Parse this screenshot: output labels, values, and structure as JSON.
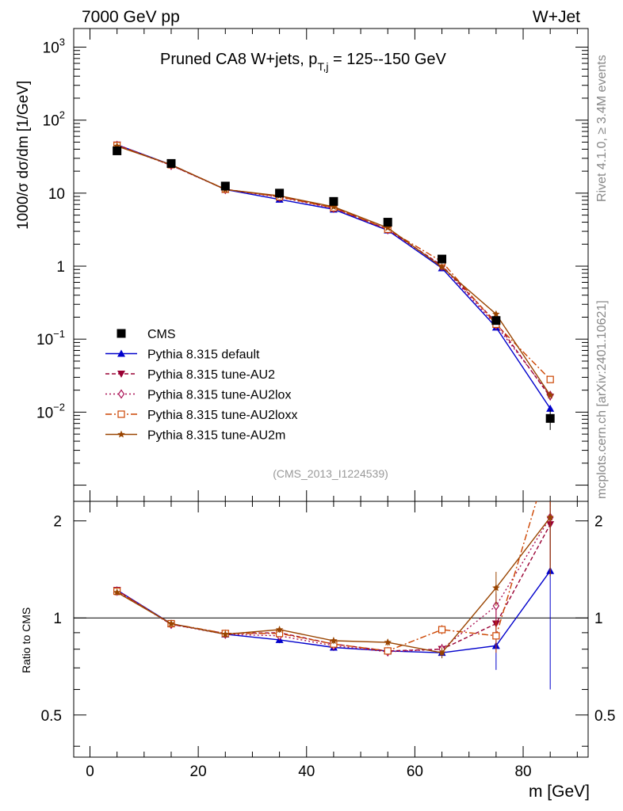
{
  "header": {
    "left": "7000 GeV pp",
    "right": "W+Jet",
    "title_main": "Pruned CA8 W+jets, p",
    "title_sub": "T,j",
    "title_tail": " = 125--150 GeV",
    "watermark": "(CMS_2013_I1224539)",
    "side_top": "Rivet 4.1.0, ≥ 3.4M events",
    "side_bottom": "mcplots.cern.ch [arXiv:2401.10621]"
  },
  "chart_data": {
    "type": "line",
    "title": "Pruned CA8 W+jets, p_T,j = 125--150 GeV",
    "xlabel": "m [GeV]",
    "ylabel": "1000/σ  dσ/dm [1/GeV]",
    "ratio_ylabel": "Ratio to CMS",
    "xlim": [
      -3,
      92
    ],
    "ylim": [
      0.0006,
      1800
    ],
    "yscale": "log",
    "ratio_ylim": [
      0.37,
      2.3
    ],
    "ratio_yscale": "log",
    "x_ticks": [
      0,
      20,
      40,
      60,
      80
    ],
    "x_tick_labels": [
      "0",
      "20",
      "40",
      "60",
      "80"
    ],
    "y_tick_labels": [
      {
        "base": "10",
        "exp": "3",
        "value": 1000
      },
      {
        "base": "10",
        "exp": "2",
        "value": 100
      },
      {
        "base": "10",
        "exp": "",
        "value": 10
      },
      {
        "base": "1",
        "exp": "",
        "value": 1
      },
      {
        "base": "10",
        "exp": "−1",
        "value": 0.1
      },
      {
        "base": "10",
        "exp": "−2",
        "value": 0.01
      }
    ],
    "ratio_tick_labels": [
      {
        "label": "0.5",
        "value": 0.5
      },
      {
        "label": "1",
        "value": 1
      },
      {
        "label": "2",
        "value": 2
      }
    ],
    "x": [
      5,
      15,
      25,
      35,
      45,
      55,
      65,
      75,
      85
    ],
    "data": {
      "name": "CMS",
      "values": [
        38,
        25.5,
        12.5,
        10,
        7.7,
        4.0,
        1.25,
        0.18,
        0.0082
      ],
      "errors": [
        1.5,
        1.0,
        0.5,
        0.4,
        0.4,
        0.2,
        0.08,
        0.02,
        0.0025
      ]
    },
    "series": [
      {
        "name": "Pythia 8.315 default",
        "color": "#0000cc",
        "dash": "",
        "marker": "triangle-up",
        "values": [
          46,
          24.5,
          11.2,
          8.2,
          6.0,
          3.1,
          0.94,
          0.145,
          0.0112
        ],
        "ratio": [
          1.22,
          0.96,
          0.89,
          0.855,
          0.81,
          0.79,
          0.78,
          0.82,
          1.4
        ],
        "ratio_err": [
          0.02,
          0.02,
          0.02,
          0.02,
          0.02,
          0.02,
          0.03,
          0.13,
          0.8
        ]
      },
      {
        "name": "Pythia 8.315 tune-AU2",
        "color": "#990033",
        "dash": "5,3",
        "marker": "triangle-down",
        "values": [
          46,
          24,
          11.3,
          9.0,
          6.3,
          3.2,
          1.02,
          0.17,
          0.0162
        ],
        "ratio": [
          1.22,
          0.955,
          0.895,
          0.9,
          0.83,
          0.79,
          0.8,
          0.96,
          1.95
        ],
        "ratio_err": [
          0.02,
          0.02,
          0.02,
          0.02,
          0.02,
          0.02,
          0.03,
          0.1,
          0.6
        ]
      },
      {
        "name": "Pythia 8.315 tune-AU2lox",
        "color": "#aa1155",
        "dash": "2,3",
        "marker": "diamond",
        "values": [
          45,
          24,
          11.2,
          8.8,
          6.2,
          3.15,
          1.0,
          0.155,
          0.017
        ],
        "ratio": [
          1.21,
          0.955,
          0.89,
          0.88,
          0.82,
          0.785,
          0.8,
          1.09,
          2.05
        ],
        "ratio_err": [
          0.02,
          0.02,
          0.02,
          0.02,
          0.02,
          0.02,
          0.03,
          0.1,
          0.6
        ]
      },
      {
        "name": "Pythia 8.315 tune-AU2loxx",
        "color": "#cc4400",
        "dash": "8,3,2,3",
        "marker": "square-open",
        "values": [
          45,
          24.5,
          11.3,
          8.9,
          6.3,
          3.2,
          1.15,
          0.16,
          0.028
        ],
        "ratio": [
          1.21,
          0.96,
          0.895,
          0.895,
          0.83,
          0.79,
          0.92,
          0.88,
          3.2
        ],
        "ratio_err": [
          0.02,
          0.02,
          0.02,
          0.02,
          0.02,
          0.02,
          0.03,
          0.1,
          0.5
        ]
      },
      {
        "name": "Pythia 8.315 tune-AU2m",
        "color": "#994400",
        "dash": "",
        "marker": "star",
        "values": [
          44,
          24.5,
          11.2,
          9.2,
          6.5,
          3.35,
          0.97,
          0.22,
          0.017
        ],
        "ratio": [
          1.2,
          0.96,
          0.89,
          0.92,
          0.85,
          0.84,
          0.78,
          1.24,
          2.05
        ],
        "ratio_err": [
          0.02,
          0.02,
          0.02,
          0.02,
          0.02,
          0.02,
          0.03,
          0.15,
          0.7
        ]
      }
    ]
  }
}
